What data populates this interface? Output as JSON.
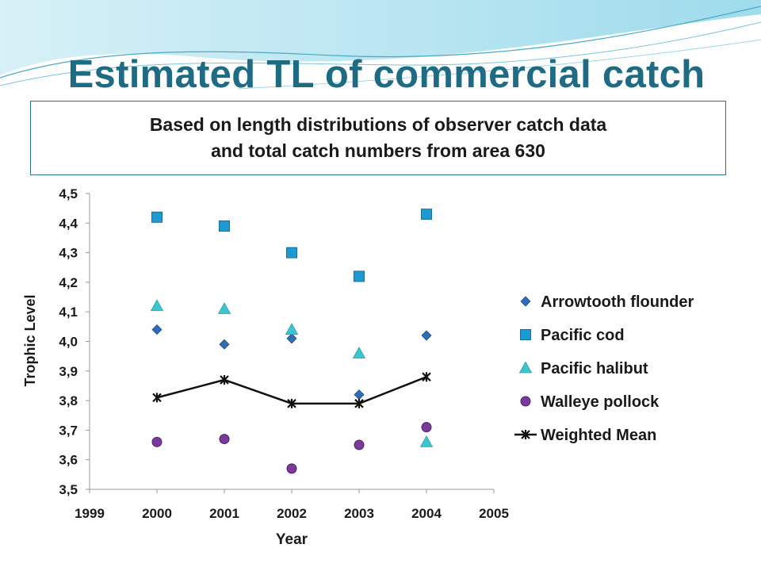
{
  "slide": {
    "title": "Estimated TL of commercial catch",
    "subtitle_line1": "Based on length distributions of observer catch data",
    "subtitle_line2": "and total catch numbers from area 630",
    "colors": {
      "title": "#1f6b84",
      "border": "#2a6f88"
    }
  },
  "chart_data": {
    "type": "scatter",
    "xlabel": "Year",
    "ylabel": "Trophic Level",
    "xlim": [
      1999,
      2005
    ],
    "ylim": [
      3.5,
      4.5
    ],
    "xticks": [
      "1999",
      "2000",
      "2001",
      "2002",
      "2003",
      "2004",
      "2005"
    ],
    "yticks": [
      "3,5",
      "3,6",
      "3,7",
      "3,8",
      "3,9",
      "4,0",
      "4,1",
      "4,2",
      "4,3",
      "4,4",
      "4,5"
    ],
    "grid": false,
    "legend_position": "right",
    "series": [
      {
        "name": "Arrowtooth flounder",
        "marker": "diamond",
        "color": "#2e6db5",
        "line": false,
        "x": [
          2000,
          2001,
          2002,
          2003,
          2004
        ],
        "y": [
          4.04,
          3.99,
          4.01,
          3.82,
          4.02
        ]
      },
      {
        "name": "Pacific cod",
        "marker": "square",
        "color": "#1e9ad3",
        "line": false,
        "x": [
          2000,
          2001,
          2002,
          2003,
          2004
        ],
        "y": [
          4.42,
          4.39,
          4.3,
          4.22,
          4.43
        ]
      },
      {
        "name": "Pacific halibut",
        "marker": "triangle",
        "color": "#3cc5cf",
        "line": false,
        "x": [
          2000,
          2001,
          2002,
          2003,
          2004
        ],
        "y": [
          4.12,
          4.11,
          4.04,
          3.96,
          3.66
        ]
      },
      {
        "name": "Walleye pollock",
        "marker": "circle",
        "color": "#7a3a98",
        "line": false,
        "x": [
          2000,
          2001,
          2002,
          2003,
          2004
        ],
        "y": [
          3.66,
          3.67,
          3.57,
          3.65,
          3.71
        ]
      },
      {
        "name": "Weighted Mean",
        "marker": "star",
        "color": "#111111",
        "line": true,
        "x": [
          2000,
          2001,
          2002,
          2003,
          2004
        ],
        "y": [
          3.81,
          3.87,
          3.79,
          3.79,
          3.88
        ]
      }
    ]
  }
}
